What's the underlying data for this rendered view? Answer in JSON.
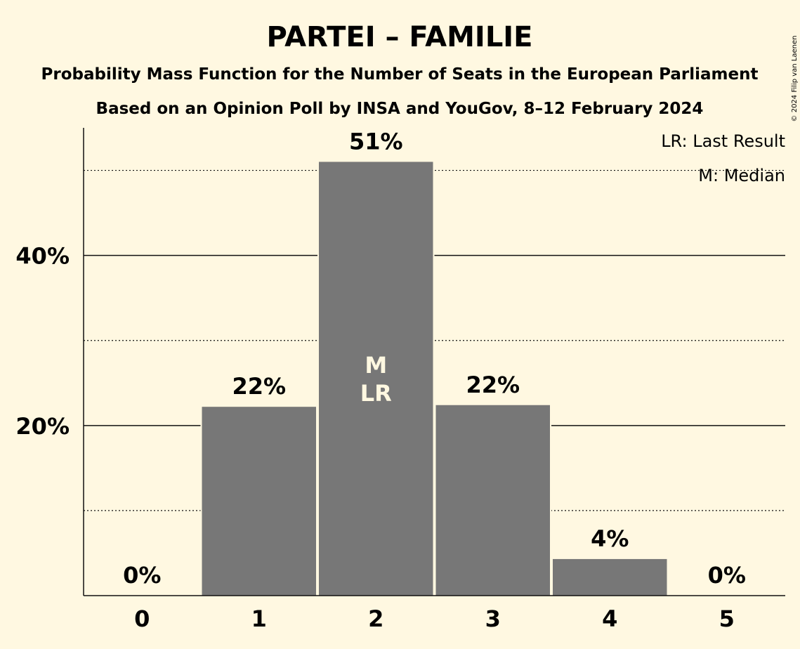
{
  "chart_data": {
    "type": "bar",
    "title": "PARTEI – FAMILIE",
    "subtitle": "Probability Mass Function for the Number of Seats in the European Parliament",
    "subtitle2": "Based on an Opinion Poll by INSA and YouGov, 8–12 February 2024",
    "categories": [
      "0",
      "1",
      "2",
      "3",
      "4",
      "5"
    ],
    "values": [
      0,
      22.2,
      51.0,
      22.4,
      4.3,
      0
    ],
    "value_labels": [
      "0%",
      "22%",
      "51%",
      "22%",
      "4%",
      "0%"
    ],
    "ylim": [
      0,
      55
    ],
    "major_ticks": [
      20,
      40
    ],
    "major_tick_labels": [
      "20%",
      "40%"
    ],
    "minor_gridlines": [
      10,
      30,
      50
    ],
    "median_index": 2,
    "last_result_index": 2,
    "median_marker": "M",
    "last_result_marker": "LR",
    "legend": {
      "placement": "top-right",
      "items": [
        "LR: Last Result",
        "M: Median"
      ]
    },
    "copyright": "© 2024 Filip van Laenen",
    "colors": {
      "background": "#fff8e1",
      "bar": "#777777",
      "marker_text": "#fff8e1",
      "text": "#111111"
    }
  }
}
